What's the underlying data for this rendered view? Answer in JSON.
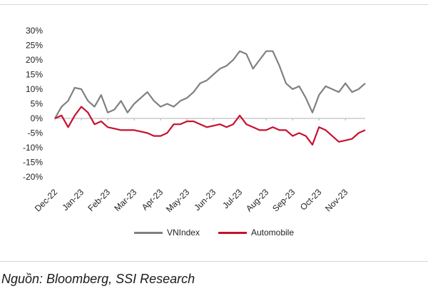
{
  "chart_data": {
    "type": "line",
    "title": "",
    "xlabel": "",
    "ylabel": "",
    "ylim": [
      -20,
      30
    ],
    "yticks": [
      30,
      25,
      20,
      15,
      10,
      5,
      0,
      -5,
      -10,
      -15,
      -20
    ],
    "ytick_labels": [
      "30%",
      "25%",
      "20%",
      "15%",
      "10%",
      "5%",
      "0%",
      "-5%",
      "-10%",
      "-15%",
      "-20%"
    ],
    "xtick_labels": [
      "Dec-22",
      "Jan-23",
      "Feb-23",
      "Mar-23",
      "Apr-23",
      "May-23",
      "Jun-23",
      "Jul-23",
      "Aug-23",
      "Sep-23",
      "Oct-23",
      "Nov-23"
    ],
    "x": [
      0,
      0.25,
      0.5,
      0.75,
      1,
      1.25,
      1.5,
      1.75,
      2,
      2.25,
      2.5,
      2.75,
      3,
      3.25,
      3.5,
      3.75,
      4,
      4.25,
      4.5,
      4.75,
      5,
      5.25,
      5.5,
      5.75,
      6,
      6.25,
      6.5,
      6.75,
      7,
      7.25,
      7.5,
      7.75,
      8,
      8.25,
      8.5,
      8.75,
      9,
      9.25,
      9.5,
      9.75,
      10,
      10.25,
      10.5,
      10.75,
      11,
      11.25,
      11.5,
      11.75
    ],
    "series": [
      {
        "name": "VNIndex",
        "color": "#808080",
        "values": [
          0,
          4,
          6,
          10.5,
          10,
          6,
          4,
          8,
          2,
          3,
          6,
          2,
          5,
          7,
          9,
          6,
          4,
          5,
          4,
          6,
          7,
          9,
          12,
          13,
          15,
          17,
          18,
          20,
          23,
          22,
          17,
          20,
          23,
          23,
          18,
          12,
          10,
          11,
          7,
          2,
          8,
          11,
          10,
          9,
          12,
          9,
          10,
          12
        ]
      },
      {
        "name": "Automobile",
        "color": "#c8102e",
        "values": [
          0,
          1,
          -3,
          1,
          4,
          2,
          -2,
          -1,
          -3,
          -3.5,
          -4,
          -4,
          -4,
          -4.5,
          -5,
          -6,
          -6,
          -5,
          -2,
          -2,
          -1,
          -1,
          -2,
          -3,
          -2.5,
          -2,
          -3,
          -2,
          1,
          -2,
          -3,
          -4,
          -4,
          -3,
          -4,
          -4,
          -6,
          -5,
          -6,
          -9,
          -3,
          -4,
          -6,
          -8,
          -7.5,
          -7,
          -5,
          -4
        ]
      }
    ]
  },
  "legend": [
    {
      "label": "VNIndex",
      "color": "#808080"
    },
    {
      "label": "Automobile",
      "color": "#c8102e"
    }
  ],
  "source": "Nguồn: Bloomberg, SSI Research"
}
